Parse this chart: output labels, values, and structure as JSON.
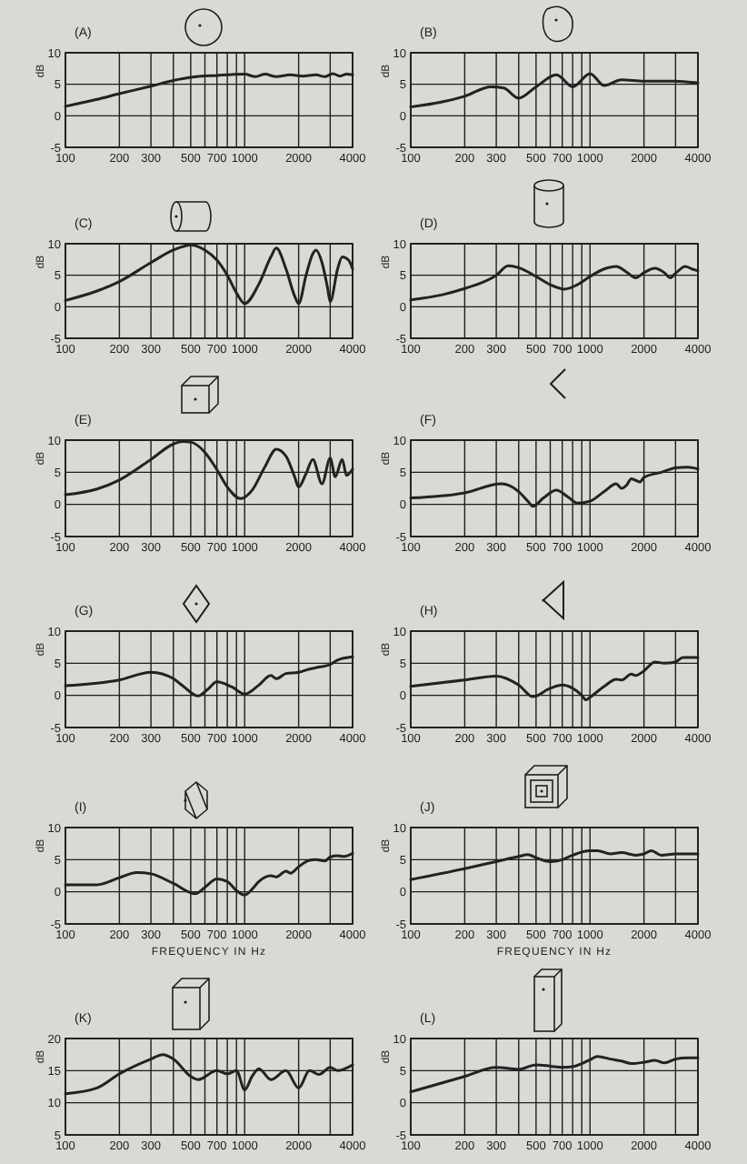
{
  "chart_data": [
    {
      "type": "line",
      "title": "(A)",
      "ylabel": "dB",
      "log": "x",
      "xlim": [
        100,
        4000
      ],
      "xticks": [
        100,
        200,
        300,
        {
          "value": 400,
          "label": null
        },
        500,
        {
          "value": 600,
          "label": null
        },
        700,
        {
          "value": 800,
          "label": null
        },
        {
          "value": 900,
          "label": null
        },
        1000,
        2000,
        {
          "value": 3000,
          "label": null
        },
        4000
      ],
      "ylim": [
        -5,
        10
      ],
      "yticks": [
        -5,
        0,
        5,
        10
      ],
      "grid": true,
      "x": [
        100,
        150,
        200,
        300,
        400,
        500,
        700,
        1000,
        1150,
        1300,
        1500,
        1800,
        2100,
        2500,
        2800,
        3100,
        3400,
        3700,
        4000
      ],
      "series": [
        {
          "color": "#222222",
          "values": [
            1.5,
            2.6,
            3.5,
            4.7,
            5.6,
            6.1,
            6.4,
            6.6,
            6.2,
            6.6,
            6.2,
            6.5,
            6.3,
            6.5,
            6.2,
            6.7,
            6.3,
            6.6,
            6.5
          ]
        }
      ]
    },
    {
      "type": "line",
      "title": "(B)",
      "ylabel": "dB",
      "log": "x",
      "xlim": [
        100,
        4000
      ],
      "xticks": [
        100,
        200,
        300,
        {
          "value": 400,
          "label": null
        },
        500,
        {
          "value": 600,
          "label": null
        },
        700,
        {
          "value": 800,
          "label": null
        },
        {
          "value": 900,
          "label": null
        },
        1000,
        2000,
        {
          "value": 3000,
          "label": null
        },
        4000
      ],
      "ylim": [
        -5,
        10
      ],
      "yticks": [
        -5,
        0,
        5,
        10
      ],
      "grid": true,
      "x": [
        100,
        150,
        200,
        280,
        330,
        400,
        500,
        650,
        800,
        1000,
        1200,
        1500,
        2000,
        3000,
        4000
      ],
      "series": [
        {
          "color": "#222222",
          "values": [
            1.4,
            2.2,
            3.1,
            4.6,
            4.4,
            2.8,
            4.6,
            6.5,
            4.6,
            6.7,
            4.8,
            5.7,
            5.5,
            5.5,
            5.2
          ]
        }
      ]
    },
    {
      "type": "line",
      "title": "(C)",
      "ylabel": "dB",
      "log": "x",
      "xlim": [
        100,
        4000
      ],
      "xticks": [
        100,
        200,
        300,
        {
          "value": 400,
          "label": null
        },
        500,
        {
          "value": 600,
          "label": null
        },
        700,
        {
          "value": 800,
          "label": null
        },
        {
          "value": 900,
          "label": null
        },
        1000,
        2000,
        {
          "value": 3000,
          "label": null
        },
        4000
      ],
      "ylim": [
        -5,
        10
      ],
      "yticks": [
        -5,
        0,
        5,
        10
      ],
      "grid": true,
      "x": [
        100,
        150,
        200,
        300,
        400,
        500,
        600,
        700,
        800,
        900,
        1000,
        1200,
        1400,
        1500,
        1700,
        1900,
        2000,
        2200,
        2400,
        2500,
        2700,
        2900,
        3000,
        3300,
        3500,
        3800,
        4000
      ],
      "series": [
        {
          "color": "#222222",
          "values": [
            1.0,
            2.5,
            4.0,
            7.0,
            9.0,
            9.8,
            9.0,
            7.4,
            5.0,
            2.2,
            0.5,
            3.6,
            7.9,
            9.3,
            6.0,
            1.7,
            0.5,
            5.0,
            8.4,
            9.0,
            7.0,
            3.0,
            0.8,
            6.0,
            7.9,
            7.4,
            6.0
          ]
        }
      ]
    },
    {
      "type": "line",
      "title": "(D)",
      "ylabel": "dB",
      "log": "x",
      "xlim": [
        100,
        4000
      ],
      "xticks": [
        100,
        200,
        300,
        {
          "value": 400,
          "label": null
        },
        500,
        {
          "value": 600,
          "label": null
        },
        700,
        {
          "value": 800,
          "label": null
        },
        {
          "value": 900,
          "label": null
        },
        1000,
        2000,
        {
          "value": 3000,
          "label": null
        },
        4000
      ],
      "ylim": [
        -5,
        10
      ],
      "yticks": [
        -5,
        0,
        5,
        10
      ],
      "grid": true,
      "x": [
        100,
        150,
        200,
        300,
        350,
        400,
        500,
        600,
        720,
        850,
        1000,
        1200,
        1400,
        1600,
        1800,
        2000,
        2300,
        2600,
        2800,
        3000,
        3400,
        3700,
        4000
      ],
      "series": [
        {
          "color": "#222222",
          "values": [
            1.1,
            1.9,
            2.9,
            5.0,
            6.5,
            6.2,
            4.8,
            3.5,
            2.8,
            3.5,
            4.8,
            6.0,
            6.4,
            5.5,
            4.6,
            5.4,
            6.1,
            5.4,
            4.6,
            5.3,
            6.4,
            6.0,
            5.7
          ]
        }
      ]
    },
    {
      "type": "line",
      "title": "(E)",
      "ylabel": "dB",
      "log": "x",
      "xlim": [
        100,
        4000
      ],
      "xticks": [
        100,
        200,
        300,
        {
          "value": 400,
          "label": null
        },
        500,
        {
          "value": 600,
          "label": null
        },
        700,
        {
          "value": 800,
          "label": null
        },
        {
          "value": 900,
          "label": null
        },
        1000,
        2000,
        {
          "value": 3000,
          "label": null
        },
        4000
      ],
      "ylim": [
        -5,
        10
      ],
      "yticks": [
        -5,
        0,
        5,
        10
      ],
      "grid": true,
      "x": [
        100,
        150,
        200,
        300,
        400,
        450,
        500,
        600,
        700,
        800,
        950,
        1100,
        1300,
        1500,
        1700,
        1900,
        2000,
        2200,
        2400,
        2700,
        3000,
        3200,
        3500,
        3700,
        4000
      ],
      "series": [
        {
          "color": "#222222",
          "values": [
            1.5,
            2.4,
            3.8,
            7.0,
            9.4,
            9.8,
            9.7,
            8.1,
            5.4,
            2.7,
            0.9,
            2.2,
            5.9,
            8.6,
            7.5,
            4.3,
            2.7,
            4.8,
            7.0,
            3.2,
            7.2,
            4.3,
            7.0,
            4.5,
            5.5
          ]
        }
      ]
    },
    {
      "type": "line",
      "title": "(F)",
      "ylabel": "dB",
      "log": "x",
      "xlim": [
        100,
        4000
      ],
      "xticks": [
        100,
        200,
        300,
        {
          "value": 400,
          "label": null
        },
        500,
        {
          "value": 600,
          "label": null
        },
        700,
        {
          "value": 800,
          "label": null
        },
        {
          "value": 900,
          "label": null
        },
        1000,
        2000,
        {
          "value": 3000,
          "label": null
        },
        4000
      ],
      "ylim": [
        -5,
        10
      ],
      "yticks": [
        -5,
        0,
        5,
        10
      ],
      "grid": true,
      "x": [
        100,
        200,
        320,
        400,
        450,
        480,
        550,
        650,
        750,
        850,
        1000,
        1200,
        1400,
        1500,
        1600,
        1700,
        1900,
        2000,
        2500,
        3000,
        3500,
        4000
      ],
      "series": [
        {
          "color": "#222222",
          "values": [
            1.0,
            1.8,
            3.2,
            2.0,
            0.5,
            -0.3,
            1.0,
            2.2,
            1.2,
            0.2,
            0.5,
            2.0,
            3.2,
            2.5,
            3.0,
            4.0,
            3.5,
            4.2,
            5.0,
            5.7,
            5.8,
            5.5
          ]
        }
      ]
    },
    {
      "type": "line",
      "title": "(G)",
      "ylabel": "dB",
      "log": "x",
      "xlim": [
        100,
        4000
      ],
      "xticks": [
        100,
        200,
        300,
        {
          "value": 400,
          "label": null
        },
        500,
        {
          "value": 600,
          "label": null
        },
        700,
        {
          "value": 800,
          "label": null
        },
        {
          "value": 900,
          "label": null
        },
        1000,
        2000,
        {
          "value": 3000,
          "label": null
        },
        4000
      ],
      "ylim": [
        -5,
        10
      ],
      "yticks": [
        -5,
        0,
        5,
        10
      ],
      "grid": true,
      "x": [
        100,
        200,
        300,
        400,
        450,
        550,
        620,
        700,
        850,
        1000,
        1200,
        1400,
        1500,
        1700,
        2000,
        2300,
        2600,
        3000,
        3300,
        4000
      ],
      "series": [
        {
          "color": "#222222",
          "values": [
            1.5,
            2.4,
            3.6,
            2.6,
            1.5,
            -0.1,
            0.9,
            2.1,
            1.3,
            0.2,
            1.6,
            3.1,
            2.6,
            3.4,
            3.6,
            4.1,
            4.4,
            4.8,
            5.5,
            6.0
          ]
        }
      ]
    },
    {
      "type": "line",
      "title": "(H)",
      "ylabel": "dB",
      "log": "x",
      "xlim": [
        100,
        4000
      ],
      "xticks": [
        100,
        200,
        300,
        {
          "value": 400,
          "label": null
        },
        500,
        {
          "value": 600,
          "label": null
        },
        700,
        {
          "value": 800,
          "label": null
        },
        {
          "value": 900,
          "label": null
        },
        1000,
        2000,
        {
          "value": 3000,
          "label": null
        },
        4000
      ],
      "ylim": [
        -5,
        10
      ],
      "yticks": [
        -5,
        0,
        5,
        10
      ],
      "grid": true,
      "x": [
        100,
        200,
        300,
        400,
        480,
        600,
        700,
        800,
        900,
        950,
        1000,
        1200,
        1400,
        1500,
        1700,
        1800,
        2000,
        2300,
        2600,
        3000,
        3300,
        4000
      ],
      "series": [
        {
          "color": "#222222",
          "values": [
            1.4,
            2.4,
            3.0,
            1.6,
            -0.2,
            1.1,
            1.6,
            1.1,
            0.0,
            -0.7,
            -0.3,
            1.4,
            2.5,
            2.4,
            3.3,
            3.1,
            3.8,
            5.2,
            5.0,
            5.2,
            5.9,
            5.9
          ]
        }
      ]
    },
    {
      "type": "line",
      "title": "(I)",
      "xlabel": "FREQUENCY IN Hz",
      "ylabel": "dB",
      "log": "x",
      "xlim": [
        100,
        4000
      ],
      "xticks": [
        100,
        200,
        300,
        {
          "value": 400,
          "label": null
        },
        500,
        {
          "value": 600,
          "label": null
        },
        700,
        {
          "value": 800,
          "label": null
        },
        {
          "value": 900,
          "label": null
        },
        1000,
        2000,
        {
          "value": 3000,
          "label": null
        },
        4000
      ],
      "ylim": [
        -5,
        10
      ],
      "yticks": [
        -5,
        0,
        5,
        10
      ],
      "grid": true,
      "x": [
        100,
        150,
        200,
        250,
        300,
        400,
        530,
        600,
        700,
        800,
        900,
        1000,
        1100,
        1200,
        1400,
        1500,
        1700,
        1800,
        2000,
        2300,
        2500,
        2800,
        3000,
        3300,
        3600,
        4000
      ],
      "series": [
        {
          "color": "#222222",
          "values": [
            1.1,
            1.1,
            2.2,
            3.0,
            2.8,
            1.3,
            -0.3,
            0.7,
            2.0,
            1.6,
            0.2,
            -0.5,
            0.4,
            1.6,
            2.5,
            2.3,
            3.2,
            2.9,
            3.9,
            4.9,
            5.0,
            4.8,
            5.4,
            5.6,
            5.5,
            6.0
          ]
        }
      ]
    },
    {
      "type": "line",
      "title": "(J)",
      "xlabel": "FREQUENCY IN Hz",
      "ylabel": "dB",
      "log": "x",
      "xlim": [
        100,
        4000
      ],
      "xticks": [
        100,
        200,
        300,
        {
          "value": 400,
          "label": null
        },
        500,
        {
          "value": 600,
          "label": null
        },
        700,
        {
          "value": 800,
          "label": null
        },
        {
          "value": 900,
          "label": null
        },
        1000,
        2000,
        {
          "value": 3000,
          "label": null
        },
        4000
      ],
      "ylim": [
        -5,
        10
      ],
      "yticks": [
        -5,
        0,
        5,
        10
      ],
      "grid": true,
      "x": [
        100,
        200,
        300,
        400,
        450,
        500,
        600,
        700,
        800,
        1000,
        1100,
        1300,
        1500,
        1800,
        2000,
        2200,
        2500,
        3000,
        4000
      ],
      "series": [
        {
          "color": "#222222",
          "values": [
            1.9,
            3.6,
            4.7,
            5.5,
            5.8,
            5.3,
            4.7,
            5.0,
            5.7,
            6.4,
            6.4,
            5.9,
            6.1,
            5.7,
            5.9,
            6.4,
            5.7,
            5.9,
            5.9
          ]
        }
      ]
    },
    {
      "type": "line",
      "title": "(K)",
      "ylabel": "dB",
      "log": "x",
      "xlim": [
        100,
        4000
      ],
      "xticks": [
        100,
        200,
        300,
        {
          "value": 400,
          "label": null
        },
        500,
        {
          "value": 600,
          "label": null
        },
        700,
        {
          "value": 800,
          "label": null
        },
        {
          "value": 900,
          "label": null
        },
        1000,
        2000,
        {
          "value": 3000,
          "label": null
        },
        4000
      ],
      "ylim": [
        5,
        20
      ],
      "yticks": [
        5,
        10,
        15,
        20
      ],
      "grid": true,
      "x": [
        100,
        150,
        200,
        300,
        350,
        400,
        500,
        550,
        700,
        800,
        900,
        1000,
        1100,
        1200,
        1400,
        1700,
        2000,
        2300,
        2600,
        3000,
        3300,
        4000
      ],
      "series": [
        {
          "color": "#222222",
          "values": [
            11.4,
            12.3,
            14.5,
            16.8,
            17.5,
            16.8,
            14.1,
            13.6,
            15.0,
            14.5,
            15.0,
            12.0,
            14.1,
            15.3,
            13.6,
            15.0,
            12.3,
            15.0,
            14.4,
            15.5,
            15.0,
            15.9
          ]
        }
      ]
    },
    {
      "type": "line",
      "title": "(L)",
      "ylabel": "dB",
      "log": "x",
      "xlim": [
        100,
        4000
      ],
      "xticks": [
        100,
        200,
        300,
        {
          "value": 400,
          "label": null
        },
        500,
        {
          "value": 600,
          "label": null
        },
        700,
        {
          "value": 800,
          "label": null
        },
        {
          "value": 900,
          "label": null
        },
        1000,
        2000,
        {
          "value": 3000,
          "label": null
        },
        4000
      ],
      "ylim": [
        -5,
        10
      ],
      "yticks": [
        -5,
        0,
        5,
        10
      ],
      "grid": true,
      "x": [
        100,
        200,
        300,
        400,
        500,
        600,
        700,
        800,
        900,
        1000,
        1100,
        1300,
        1500,
        1700,
        2000,
        2300,
        2600,
        3000,
        3500,
        4000
      ],
      "series": [
        {
          "color": "#222222",
          "values": [
            1.7,
            4.1,
            5.5,
            5.2,
            5.9,
            5.7,
            5.5,
            5.6,
            6.1,
            6.7,
            7.2,
            6.8,
            6.5,
            6.1,
            6.3,
            6.6,
            6.2,
            6.8,
            7.0,
            7.0
          ]
        }
      ]
    }
  ]
}
